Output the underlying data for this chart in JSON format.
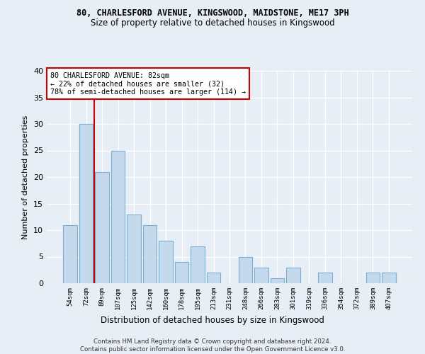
{
  "title1": "80, CHARLESFORD AVENUE, KINGSWOOD, MAIDSTONE, ME17 3PH",
  "title2": "Size of property relative to detached houses in Kingswood",
  "xlabel": "Distribution of detached houses by size in Kingswood",
  "ylabel": "Number of detached properties",
  "categories": [
    "54sqm",
    "72sqm",
    "89sqm",
    "107sqm",
    "125sqm",
    "142sqm",
    "160sqm",
    "178sqm",
    "195sqm",
    "213sqm",
    "231sqm",
    "248sqm",
    "266sqm",
    "283sqm",
    "301sqm",
    "319sqm",
    "336sqm",
    "354sqm",
    "372sqm",
    "389sqm",
    "407sqm"
  ],
  "values": [
    11,
    30,
    21,
    25,
    13,
    11,
    8,
    4,
    7,
    2,
    0,
    5,
    3,
    1,
    3,
    0,
    2,
    0,
    0,
    2,
    2
  ],
  "bar_color": "#c5d9ed",
  "bar_edge_color": "#7aafd4",
  "vline_color": "#cc0000",
  "annotation_line1": "80 CHARLESFORD AVENUE: 82sqm",
  "annotation_line2": "← 22% of detached houses are smaller (32)",
  "annotation_line3": "78% of semi-detached houses are larger (114) →",
  "annotation_box_color": "#ffffff",
  "annotation_box_edge": "#cc0000",
  "ylim": [
    0,
    40
  ],
  "yticks": [
    0,
    5,
    10,
    15,
    20,
    25,
    30,
    35,
    40
  ],
  "footer": "Contains HM Land Registry data © Crown copyright and database right 2024.\nContains public sector information licensed under the Open Government Licence v3.0.",
  "bg_color": "#e8eef5",
  "grid_color": "#ffffff",
  "title1_fontsize": 8.5,
  "title2_fontsize": 8.5
}
